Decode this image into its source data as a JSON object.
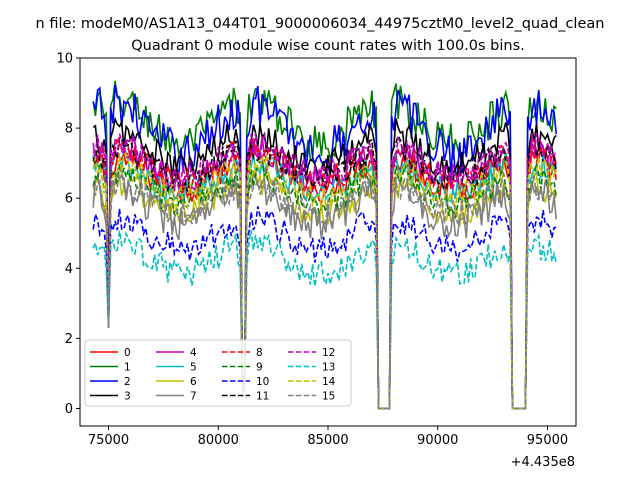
{
  "chart_data": {
    "type": "line",
    "suptitle": "n file: modeM0/AS1A13_044T01_9000006034_44975cztM0_level2_quad_clean",
    "title": "Quadrant 0 module wise count rates with 100.0s bins.",
    "xlabel": "",
    "ylabel": "",
    "x_offset_label": "+4.435e8",
    "xlim": [
      73700,
      96300
    ],
    "ylim": [
      -0.5,
      10
    ],
    "xticks": [
      75000,
      80000,
      85000,
      90000,
      95000
    ],
    "xtick_labels": [
      "75000",
      "80000",
      "85000",
      "90000",
      "95000"
    ],
    "yticks": [
      0,
      2,
      4,
      6,
      8,
      10
    ],
    "ytick_labels": [
      "0",
      "2",
      "4",
      "6",
      "8",
      "10"
    ],
    "grid": false,
    "legend_position": "lower-left",
    "legend_columns": 4,
    "x_range": [
      74300,
      95400
    ],
    "bin_seconds": 100,
    "gaps": [
      {
        "start": 74950,
        "end": 75000,
        "min": 2.3
      },
      {
        "start": 81100,
        "end": 81200,
        "min": 0.5
      },
      {
        "start": 87300,
        "end": 87800,
        "min": 0.0
      },
      {
        "start": 93400,
        "end": 94000,
        "min": 0.0
      }
    ],
    "series": [
      {
        "name": "0",
        "color": "#ff0000",
        "dash": "solid",
        "level": 6.7,
        "amp": 0.5
      },
      {
        "name": "1",
        "color": "#008000",
        "dash": "solid",
        "level": 8.2,
        "amp": 0.7
      },
      {
        "name": "2",
        "color": "#0000ff",
        "dash": "solid",
        "level": 8.0,
        "amp": 0.8
      },
      {
        "name": "3",
        "color": "#000000",
        "dash": "solid",
        "level": 7.4,
        "amp": 0.6
      },
      {
        "name": "4",
        "color": "#bf00bf",
        "dash": "solid",
        "level": 7.0,
        "amp": 0.5
      },
      {
        "name": "5",
        "color": "#00bfbf",
        "dash": "solid",
        "level": 6.6,
        "amp": 0.5
      },
      {
        "name": "6",
        "color": "#bfbf00",
        "dash": "solid",
        "level": 6.0,
        "amp": 0.5
      },
      {
        "name": "7",
        "color": "#808080",
        "dash": "solid",
        "level": 5.8,
        "amp": 0.6
      },
      {
        "name": "8",
        "color": "#ff0000",
        "dash": "dashed",
        "level": 6.9,
        "amp": 0.5
      },
      {
        "name": "9",
        "color": "#008000",
        "dash": "dashed",
        "level": 6.3,
        "amp": 0.5
      },
      {
        "name": "10",
        "color": "#0000ff",
        "dash": "dashed",
        "level": 5.0,
        "amp": 0.5
      },
      {
        "name": "11",
        "color": "#000000",
        "dash": "dashed",
        "level": 7.0,
        "amp": 0.5
      },
      {
        "name": "12",
        "color": "#bf00bf",
        "dash": "dashed",
        "level": 7.1,
        "amp": 0.5
      },
      {
        "name": "13",
        "color": "#00bfbf",
        "dash": "dashed",
        "level": 4.3,
        "amp": 0.5
      },
      {
        "name": "14",
        "color": "#bfbf00",
        "dash": "dashed",
        "level": 6.5,
        "amp": 0.5
      },
      {
        "name": "15",
        "color": "#808080",
        "dash": "dashed",
        "level": 6.0,
        "amp": 0.5
      }
    ]
  }
}
